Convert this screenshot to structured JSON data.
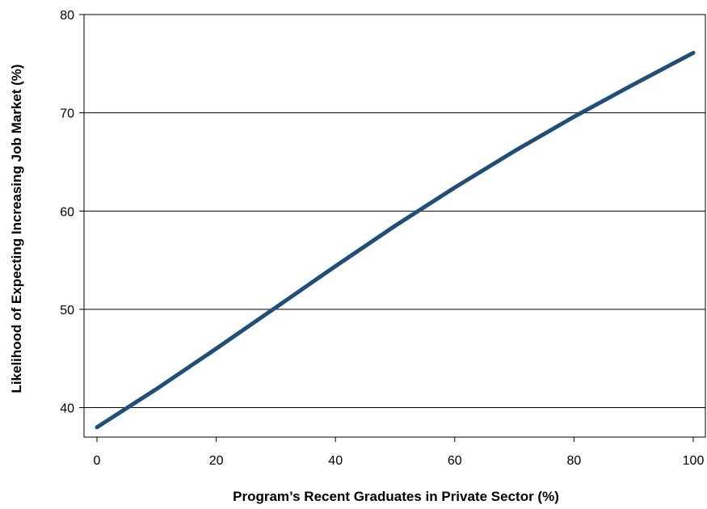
{
  "chart_data": {
    "type": "line",
    "title": "",
    "xlabel": "Program’s Recent Graduates in Private Sector (%)",
    "ylabel": "Likelihood of Expecting Increasing Job Market (%)",
    "xlim": [
      0,
      100
    ],
    "ylim": [
      37,
      80
    ],
    "xticks": [
      0,
      20,
      40,
      60,
      80,
      100
    ],
    "yticks": [
      40,
      50,
      60,
      70,
      80
    ],
    "grid": "horizontal",
    "legend": "none",
    "line_color": "#1f4e79",
    "series": [
      {
        "x": [
          0,
          10,
          20,
          30,
          40,
          50,
          60,
          70,
          80,
          90,
          100
        ],
        "y": [
          38.0,
          41.9,
          46.0,
          50.2,
          54.4,
          58.5,
          62.4,
          66.1,
          69.6,
          72.9,
          76.1
        ]
      }
    ]
  }
}
